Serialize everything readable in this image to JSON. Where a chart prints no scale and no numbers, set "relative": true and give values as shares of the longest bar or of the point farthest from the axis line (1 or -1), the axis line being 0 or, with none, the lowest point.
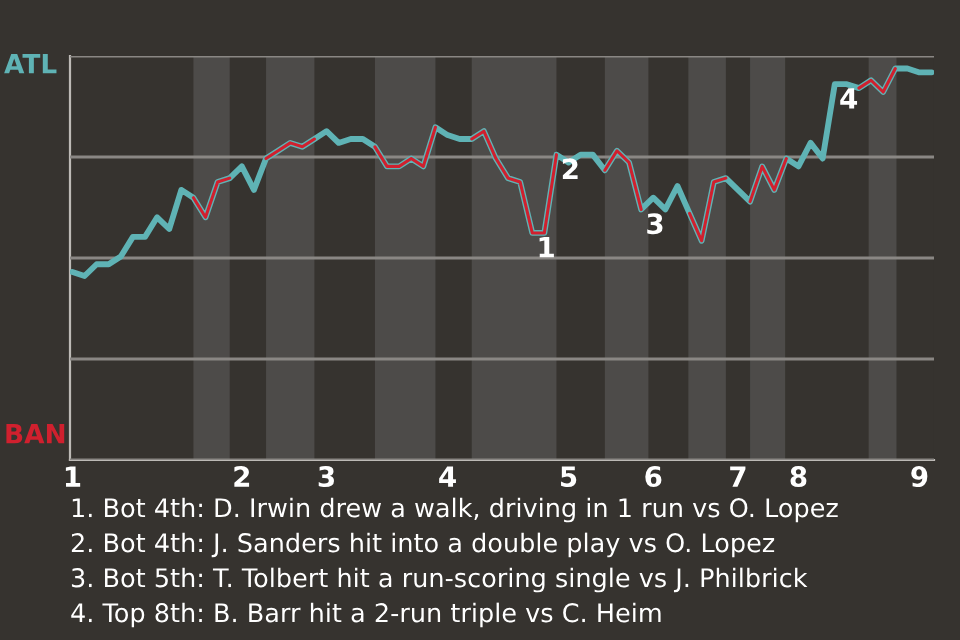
{
  "chart_data": {
    "type": "line",
    "relative": true,
    "categories": [
      "1",
      null,
      null,
      null,
      null,
      null,
      null,
      null,
      null,
      null,
      null,
      null,
      null,
      null,
      "2",
      null,
      null,
      null,
      null,
      null,
      null,
      "3",
      null,
      null,
      null,
      null,
      null,
      null,
      null,
      null,
      null,
      "4",
      null,
      null,
      null,
      null,
      null,
      null,
      null,
      null,
      null,
      "5",
      null,
      null,
      null,
      null,
      null,
      null,
      "6",
      null,
      null,
      null,
      null,
      null,
      null,
      "7",
      null,
      null,
      null,
      null,
      "8",
      null,
      null,
      null,
      null,
      null,
      null,
      null,
      null,
      null,
      "9",
      null
    ],
    "series": [
      {
        "color": "#5fb3b5",
        "values": [
          0.48,
          0.47,
          0.5,
          0.5,
          0.52,
          0.57,
          0.57,
          0.62,
          0.59,
          0.69,
          0.67,
          0.62,
          0.71,
          0.72,
          0.75,
          0.69,
          0.77,
          0.79,
          0.81,
          0.8,
          0.82,
          0.84,
          0.81,
          0.82,
          0.82,
          0.8,
          0.75,
          0.75,
          0.77,
          0.75,
          0.85,
          0.83,
          0.82,
          0.82,
          0.84,
          0.77,
          0.72,
          0.71,
          0.58,
          0.58,
          0.78,
          0.76,
          0.78,
          0.78,
          0.74,
          0.79,
          0.76,
          0.64,
          0.67,
          0.64,
          0.7,
          0.63,
          0.56,
          0.71,
          0.72,
          0.69,
          0.66,
          0.75,
          0.69,
          0.77,
          0.75,
          0.81,
          0.77,
          0.96,
          0.96,
          0.95,
          0.97,
          0.94,
          1,
          1,
          0.99,
          0.99
        ]
      },
      {
        "color": "#d0202e",
        "values": [
          null,
          null,
          null,
          null,
          null,
          null,
          null,
          null,
          null,
          null,
          0.67,
          0.62,
          0.71,
          0.72,
          null,
          null,
          0.77,
          0.79,
          0.81,
          0.8,
          0.82,
          null,
          null,
          null,
          null,
          0.8,
          0.75,
          0.75,
          0.77,
          0.75,
          0.85,
          null,
          null,
          0.82,
          0.84,
          0.77,
          0.72,
          0.71,
          0.58,
          0.58,
          0.78,
          null,
          null,
          null,
          0.74,
          0.79,
          0.76,
          0.64,
          null,
          null,
          null,
          0.63,
          0.56,
          0.71,
          0.72,
          null,
          0.66,
          0.75,
          0.69,
          0.77,
          null,
          null,
          null,
          null,
          null,
          0.95,
          0.97,
          0.94,
          1,
          null,
          null,
          null
        ]
      }
    ],
    "grid": "y",
    "annotations": [
      "ATL",
      "BAN",
      {
        "text": "1",
        "y": 0.58
      },
      {
        "text": "2",
        "y": 0.78
      },
      {
        "text": "3",
        "y": 0.64
      },
      {
        "text": "4",
        "y": 0.96
      },
      "1. Bot 4th: D. Irwin drew a walk, driving in 1 run vs O. Lopez",
      "2. Bot 4th: J. Sanders hit into a double play vs O. Lopez",
      "3. Bot 5th: T. Tolbert hit a run-scoring single vs J. Philbrick",
      "4. Top 8th: B. Barr hit a 2-run triple vs C. Heim"
    ]
  }
}
